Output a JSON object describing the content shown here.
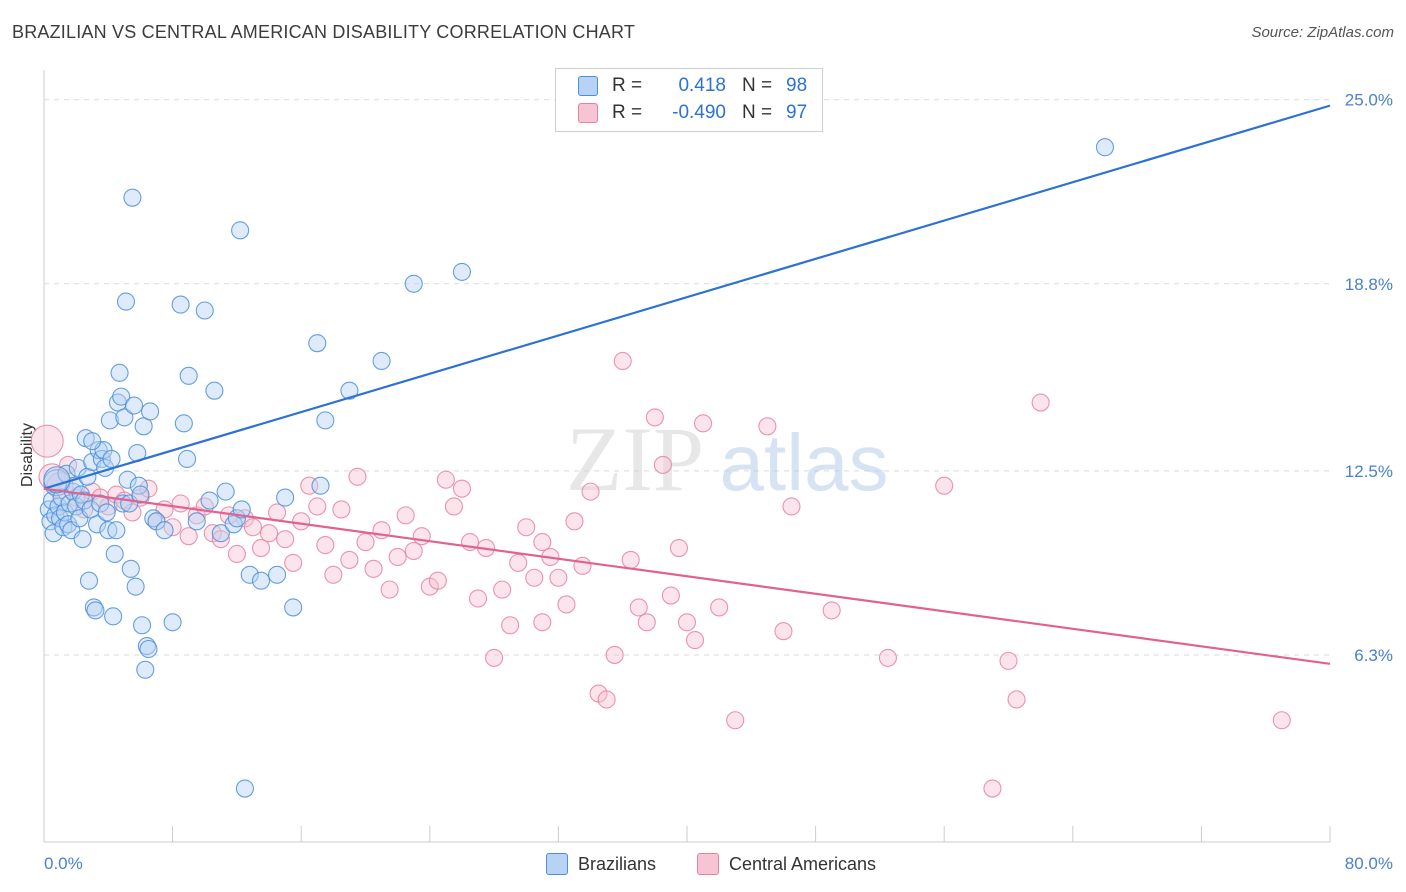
{
  "title": "BRAZILIAN VS CENTRAL AMERICAN DISABILITY CORRELATION CHART",
  "source": "Source: ZipAtlas.com",
  "watermark": {
    "zip": "ZIP",
    "atlas": "atlas"
  },
  "colors": {
    "blue": "#4a8fdc",
    "blue_fill": "#b7d2f3",
    "blue_line": "#2c72d2",
    "pink": "#e8819f",
    "pink_fill": "#f6c4d3",
    "pink_line": "#e0628f",
    "tick_text": "#4a80cc",
    "grid": "#d9d9d9"
  },
  "legend": {
    "rows": [
      {
        "r_label": "R =",
        "r_value": "0.418",
        "n_label": "N =",
        "n_value": "98"
      },
      {
        "r_label": "R =",
        "r_value": "-0.490",
        "n_label": "N =",
        "n_value": "97"
      }
    ]
  },
  "bottom_legend": {
    "series1": "Brazilians",
    "series2": "Central Americans"
  },
  "chart_data": {
    "type": "scatter",
    "title": "BRAZILIAN VS CENTRAL AMERICAN DISABILITY CORRELATION CHART",
    "xlabel": "",
    "ylabel": "Disability",
    "xlim": [
      0,
      80
    ],
    "ylim": [
      0,
      26
    ],
    "x_tick_labels": [
      "0.0%",
      "80.0%"
    ],
    "y_ticks": [
      6.3,
      12.5,
      18.8,
      25.0
    ],
    "y_tick_labels": [
      "6.3%",
      "12.5%",
      "18.8%",
      "25.0%"
    ],
    "grid": true,
    "legend_position": "top-center",
    "series": [
      {
        "name": "Brazilians",
        "R": 0.418,
        "N": 98,
        "trend": {
          "x": [
            0,
            80
          ],
          "y": [
            11.9,
            24.8
          ]
        },
        "points": [
          [
            0.3,
            11.2
          ],
          [
            0.4,
            10.8
          ],
          [
            0.5,
            11.5
          ],
          [
            0.6,
            10.4
          ],
          [
            0.7,
            11.0
          ],
          [
            0.8,
            12.1
          ],
          [
            0.9,
            11.3
          ],
          [
            1.0,
            10.9
          ],
          [
            1.1,
            11.6
          ],
          [
            1.2,
            10.6
          ],
          [
            1.3,
            11.1
          ],
          [
            1.4,
            12.4
          ],
          [
            1.5,
            10.7
          ],
          [
            1.6,
            11.4
          ],
          [
            1.7,
            10.5
          ],
          [
            1.8,
            11.8
          ],
          [
            1.9,
            12.0
          ],
          [
            2.0,
            11.3
          ],
          [
            2.1,
            12.6
          ],
          [
            2.2,
            10.9
          ],
          [
            2.3,
            11.7
          ],
          [
            2.4,
            10.2
          ],
          [
            2.5,
            11.5
          ],
          [
            2.6,
            13.6
          ],
          [
            2.7,
            12.3
          ],
          [
            2.8,
            8.8
          ],
          [
            2.9,
            11.2
          ],
          [
            3.0,
            12.8
          ],
          [
            3.1,
            7.9
          ],
          [
            3.2,
            7.8
          ],
          [
            3.3,
            10.7
          ],
          [
            3.4,
            13.2
          ],
          [
            3.5,
            11.4
          ],
          [
            3.6,
            12.9
          ],
          [
            3.7,
            13.2
          ],
          [
            3.8,
            12.6
          ],
          [
            3.9,
            11.1
          ],
          [
            4.0,
            10.5
          ],
          [
            4.1,
            14.2
          ],
          [
            4.2,
            12.9
          ],
          [
            4.3,
            7.6
          ],
          [
            4.4,
            9.7
          ],
          [
            4.5,
            10.5
          ],
          [
            4.6,
            14.8
          ],
          [
            4.7,
            15.8
          ],
          [
            4.8,
            15.0
          ],
          [
            4.9,
            11.4
          ],
          [
            5.0,
            14.3
          ],
          [
            5.1,
            18.2
          ],
          [
            5.2,
            12.2
          ],
          [
            5.3,
            11.4
          ],
          [
            5.4,
            9.2
          ],
          [
            5.5,
            21.7
          ],
          [
            5.6,
            14.7
          ],
          [
            5.7,
            8.6
          ],
          [
            5.8,
            13.1
          ],
          [
            5.9,
            12.0
          ],
          [
            6.0,
            11.7
          ],
          [
            6.1,
            7.3
          ],
          [
            6.2,
            14.0
          ],
          [
            6.3,
            5.8
          ],
          [
            6.4,
            6.6
          ],
          [
            6.5,
            6.5
          ],
          [
            6.6,
            14.5
          ],
          [
            6.8,
            10.9
          ],
          [
            7.0,
            10.8
          ],
          [
            7.5,
            10.5
          ],
          [
            8.0,
            7.4
          ],
          [
            8.5,
            18.1
          ],
          [
            8.7,
            14.1
          ],
          [
            8.9,
            12.9
          ],
          [
            9.0,
            15.7
          ],
          [
            9.5,
            10.8
          ],
          [
            10.0,
            17.9
          ],
          [
            10.3,
            11.5
          ],
          [
            10.6,
            15.2
          ],
          [
            11.0,
            10.4
          ],
          [
            11.3,
            11.8
          ],
          [
            11.8,
            10.7
          ],
          [
            12.0,
            10.9
          ],
          [
            12.2,
            20.6
          ],
          [
            12.3,
            11.2
          ],
          [
            12.5,
            1.8
          ],
          [
            12.8,
            9.0
          ],
          [
            13.5,
            8.8
          ],
          [
            14.5,
            9.0
          ],
          [
            15.0,
            11.6
          ],
          [
            15.5,
            7.9
          ],
          [
            17.0,
            16.8
          ],
          [
            17.2,
            12.0
          ],
          [
            17.5,
            14.2
          ],
          [
            19.0,
            15.2
          ],
          [
            21.0,
            16.2
          ],
          [
            23.0,
            18.8
          ],
          [
            26.0,
            19.2
          ],
          [
            66.0,
            23.4
          ],
          [
            0.8,
            12.2
          ],
          [
            3.0,
            13.5
          ]
        ]
      },
      {
        "name": "Central Americans",
        "R": -0.49,
        "N": 97,
        "trend": {
          "x": [
            0,
            80
          ],
          "y": [
            11.9,
            6.0
          ]
        },
        "points": [
          [
            0.2,
            13.5
          ],
          [
            0.5,
            12.3
          ],
          [
            1.0,
            12.0
          ],
          [
            1.5,
            12.7
          ],
          [
            2.0,
            11.6
          ],
          [
            2.5,
            11.2
          ],
          [
            3.0,
            11.8
          ],
          [
            3.5,
            11.6
          ],
          [
            4.0,
            11.3
          ],
          [
            4.5,
            11.7
          ],
          [
            5.0,
            11.5
          ],
          [
            5.5,
            11.1
          ],
          [
            6.0,
            11.6
          ],
          [
            6.5,
            11.9
          ],
          [
            7.0,
            10.8
          ],
          [
            7.5,
            11.2
          ],
          [
            8.0,
            10.6
          ],
          [
            8.5,
            11.4
          ],
          [
            9.0,
            10.3
          ],
          [
            9.5,
            11.0
          ],
          [
            10.0,
            11.3
          ],
          [
            10.5,
            10.4
          ],
          [
            11.0,
            10.2
          ],
          [
            11.5,
            11.0
          ],
          [
            12.0,
            9.7
          ],
          [
            12.5,
            10.9
          ],
          [
            13.0,
            10.6
          ],
          [
            13.5,
            9.9
          ],
          [
            14.0,
            10.4
          ],
          [
            14.5,
            11.1
          ],
          [
            15.0,
            10.2
          ],
          [
            15.5,
            9.4
          ],
          [
            16.0,
            10.8
          ],
          [
            16.5,
            12.0
          ],
          [
            17.0,
            11.3
          ],
          [
            17.5,
            10.0
          ],
          [
            18.0,
            9.0
          ],
          [
            18.5,
            11.2
          ],
          [
            19.0,
            9.5
          ],
          [
            19.5,
            12.3
          ],
          [
            20.0,
            10.1
          ],
          [
            20.5,
            9.2
          ],
          [
            21.0,
            10.5
          ],
          [
            21.5,
            8.5
          ],
          [
            22.0,
            9.6
          ],
          [
            22.5,
            11.0
          ],
          [
            23.0,
            9.8
          ],
          [
            23.5,
            10.3
          ],
          [
            24.0,
            8.6
          ],
          [
            24.5,
            8.8
          ],
          [
            25.0,
            12.2
          ],
          [
            25.5,
            11.3
          ],
          [
            26.0,
            11.9
          ],
          [
            26.5,
            10.1
          ],
          [
            27.0,
            8.2
          ],
          [
            27.5,
            9.9
          ],
          [
            28.0,
            6.2
          ],
          [
            28.5,
            8.5
          ],
          [
            29.0,
            7.3
          ],
          [
            29.5,
            9.4
          ],
          [
            30.0,
            10.6
          ],
          [
            30.5,
            8.9
          ],
          [
            31.0,
            7.4
          ],
          [
            31.5,
            9.6
          ],
          [
            32.0,
            8.9
          ],
          [
            32.5,
            8.0
          ],
          [
            33.0,
            10.8
          ],
          [
            33.5,
            9.3
          ],
          [
            34.0,
            11.8
          ],
          [
            34.5,
            5.0
          ],
          [
            35.0,
            4.8
          ],
          [
            35.5,
            6.3
          ],
          [
            36.0,
            16.2
          ],
          [
            36.5,
            9.5
          ],
          [
            37.0,
            7.9
          ],
          [
            37.5,
            7.4
          ],
          [
            38.0,
            14.3
          ],
          [
            38.5,
            12.7
          ],
          [
            39.0,
            8.3
          ],
          [
            39.5,
            9.9
          ],
          [
            40.0,
            7.4
          ],
          [
            40.5,
            6.8
          ],
          [
            41.0,
            14.1
          ],
          [
            42.0,
            7.9
          ],
          [
            43.0,
            4.1
          ],
          [
            45.0,
            14.0
          ],
          [
            46.0,
            7.1
          ],
          [
            46.5,
            11.3
          ],
          [
            49.0,
            7.8
          ],
          [
            52.5,
            6.2
          ],
          [
            56.0,
            12.0
          ],
          [
            59.0,
            1.8
          ],
          [
            60.0,
            6.1
          ],
          [
            60.5,
            4.8
          ],
          [
            62.0,
            14.8
          ],
          [
            77.0,
            4.1
          ],
          [
            31.0,
            10.1
          ]
        ]
      }
    ]
  }
}
